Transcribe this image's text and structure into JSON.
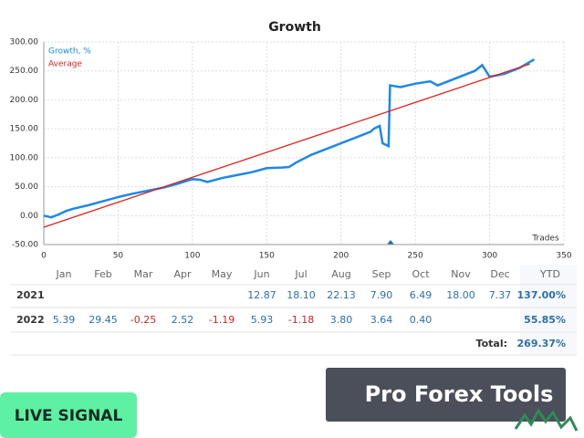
{
  "chart_data": {
    "type": "line",
    "title": "Growth",
    "xlabel": "Trades",
    "xlim": [
      0,
      350
    ],
    "xticks": [
      0,
      50,
      100,
      150,
      200,
      250,
      300,
      350
    ],
    "ylim": [
      -50,
      300
    ],
    "yticks": [
      {
        "value": -50,
        "label": "-50.00"
      },
      {
        "value": 0,
        "label": "0.00"
      },
      {
        "value": 50,
        "label": "50.00"
      },
      {
        "value": 100,
        "label": "100.00"
      },
      {
        "value": 150,
        "label": "150.00"
      },
      {
        "value": 200,
        "label": "200.00"
      },
      {
        "value": 250,
        "label": "250.00"
      },
      {
        "value": 300,
        "label": "300.00"
      }
    ],
    "grid": true,
    "series": [
      {
        "name": "Growth, %",
        "color": "#1e88e5",
        "x": [
          0,
          5,
          10,
          15,
          20,
          30,
          40,
          50,
          60,
          70,
          80,
          90,
          100,
          105,
          110,
          120,
          130,
          140,
          150,
          160,
          165,
          170,
          180,
          190,
          200,
          210,
          220,
          222,
          226,
          228,
          232,
          233,
          240,
          250,
          260,
          265,
          270,
          280,
          290,
          295,
          300,
          310,
          320,
          330
        ],
        "values": [
          0,
          -3,
          2,
          8,
          12,
          18,
          25,
          32,
          38,
          43,
          48,
          55,
          63,
          62,
          58,
          65,
          70,
          75,
          82,
          83,
          84,
          92,
          105,
          115,
          125,
          135,
          145,
          150,
          155,
          125,
          120,
          225,
          222,
          228,
          232,
          225,
          230,
          240,
          250,
          260,
          240,
          245,
          255,
          270
        ]
      },
      {
        "name": "Average",
        "color": "#e02020",
        "x": [
          0,
          327
        ],
        "values": [
          -20,
          262
        ]
      }
    ]
  },
  "table": {
    "header": [
      "Jan",
      "Feb",
      "Mar",
      "Apr",
      "May",
      "Jun",
      "Jul",
      "Aug",
      "Sep",
      "Oct",
      "Nov",
      "Dec",
      "YTD"
    ],
    "rows": [
      {
        "year": "2021",
        "cells": [
          null,
          null,
          null,
          null,
          null,
          "12.87",
          "18.10",
          "22.13",
          "7.90",
          "6.49",
          "18.00",
          "7.37",
          "137.00%"
        ]
      },
      {
        "year": "2022",
        "cells": [
          "5.39",
          "29.45",
          "-0.25",
          "2.52",
          "-1.19",
          "5.93",
          "-1.18",
          "3.80",
          "3.64",
          "0.40",
          null,
          null,
          "55.85%"
        ]
      }
    ],
    "total_label": "Total:",
    "total": "269.37%"
  },
  "buttons": {
    "live": "LIVE SIGNAL",
    "brand": "Pro Forex Tools"
  }
}
